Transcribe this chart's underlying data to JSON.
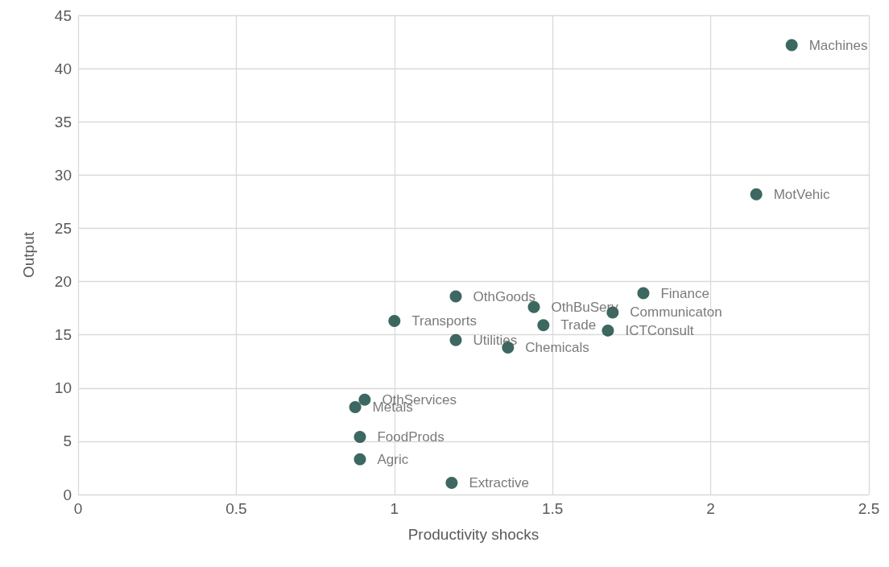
{
  "chart_data": {
    "type": "scatter",
    "xlabel": "Productivity shocks",
    "ylabel": "Output",
    "xlim": [
      0,
      2.5
    ],
    "xticks": [
      0,
      0.5,
      1,
      1.5,
      2,
      2.5
    ],
    "ylim": [
      0,
      45
    ],
    "yticks": [
      0,
      5,
      10,
      15,
      20,
      25,
      30,
      35,
      40,
      45
    ],
    "grid": true,
    "legend": false,
    "marker": "circle",
    "series": [
      {
        "name": "Machines",
        "color": "#0b4239",
        "x": [
          2.256
        ],
        "values": [
          42.2
        ]
      },
      {
        "name": "MotVehic",
        "color": "#0b4239",
        "x": [
          2.144
        ],
        "values": [
          28.2
        ]
      },
      {
        "name": "Finance",
        "color": "#0b4239",
        "x": [
          1.787
        ],
        "values": [
          18.9
        ]
      },
      {
        "name": "Communicaton",
        "color": "#0b4239",
        "x": [
          1.69
        ],
        "values": [
          17.1
        ]
      },
      {
        "name": "ICTConsult",
        "color": "#0b4239",
        "x": [
          1.675
        ],
        "values": [
          15.4
        ]
      },
      {
        "name": "OthBuServ",
        "color": "#0b4239",
        "x": [
          1.441
        ],
        "values": [
          17.6
        ]
      },
      {
        "name": "Trade",
        "color": "#0b4239",
        "x": [
          1.471
        ],
        "values": [
          15.9
        ]
      },
      {
        "name": "Chemicals",
        "color": "#0b4239",
        "x": [
          1.359
        ],
        "values": [
          13.8
        ]
      },
      {
        "name": "OthGoods",
        "color": "#0b4239",
        "x": [
          1.194
        ],
        "values": [
          18.6
        ]
      },
      {
        "name": "Utilities",
        "color": "#0b4239",
        "x": [
          1.194
        ],
        "values": [
          14.5
        ]
      },
      {
        "name": "Transports",
        "color": "#0b4239",
        "x": [
          1.0
        ],
        "values": [
          16.3
        ]
      },
      {
        "name": "OthServices",
        "color": "#0b4239",
        "x": [
          0.906
        ],
        "values": [
          8.9
        ]
      },
      {
        "name": "Metals",
        "color": "#0b4239",
        "x": [
          0.876
        ],
        "values": [
          8.2
        ]
      },
      {
        "name": "FoodProds",
        "color": "#0b4239",
        "x": [
          0.891
        ],
        "values": [
          5.4
        ]
      },
      {
        "name": "Agric",
        "color": "#0b4239",
        "x": [
          0.891
        ],
        "values": [
          3.3
        ]
      },
      {
        "name": "Extractive",
        "color": "#0b4239",
        "x": [
          1.181
        ],
        "values": [
          1.1
        ]
      }
    ]
  }
}
